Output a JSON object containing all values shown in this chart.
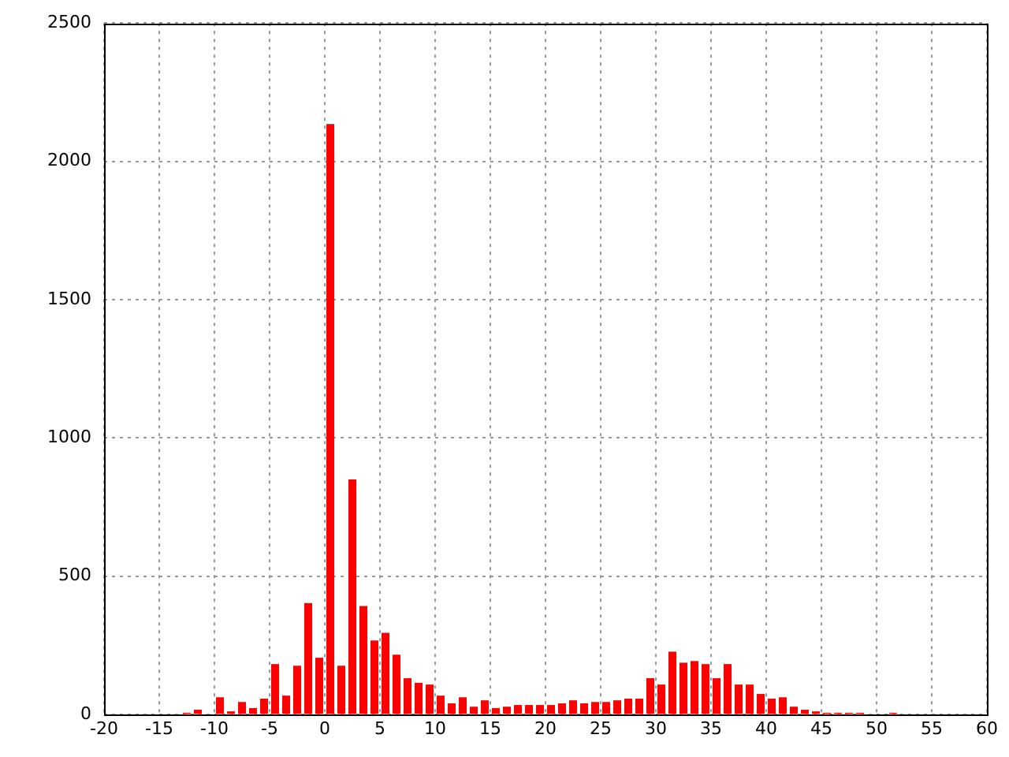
{
  "chart_data": {
    "type": "histogram",
    "bins": [
      -13,
      -12,
      -11,
      -10,
      -9,
      -8,
      -7,
      -6,
      -5,
      -4,
      -3,
      -2,
      -1,
      0,
      1,
      2,
      3,
      4,
      5,
      6,
      7,
      8,
      9,
      10,
      11,
      12,
      13,
      14,
      15,
      16,
      17,
      18,
      19,
      20,
      21,
      22,
      23,
      24,
      25,
      26,
      27,
      28,
      29,
      30,
      31,
      32,
      33,
      34,
      35,
      36,
      37,
      38,
      39,
      40,
      41,
      42,
      43,
      44,
      45,
      46,
      47,
      48,
      49,
      50,
      51,
      52
    ],
    "values": [
      6,
      17,
      0,
      62,
      11,
      45,
      23,
      57,
      182,
      68,
      176,
      403,
      205,
      2135,
      176,
      850,
      392,
      267,
      295,
      216,
      131,
      114,
      108,
      68,
      40,
      62,
      28,
      51,
      23,
      28,
      34,
      34,
      34,
      34,
      40,
      51,
      40,
      45,
      45,
      51,
      57,
      57,
      131,
      108,
      227,
      187,
      193,
      182,
      131,
      182,
      108,
      108,
      74,
      57,
      62,
      28,
      17,
      11,
      6,
      6,
      6,
      6,
      0,
      0,
      6
    ],
    "color": "#ff0000",
    "xlim": [
      -20,
      60
    ],
    "xticks": [
      -20,
      -15,
      -10,
      -5,
      0,
      5,
      10,
      15,
      20,
      25,
      30,
      35,
      40,
      45,
      50,
      55,
      60
    ],
    "ylim": [
      0,
      2500
    ],
    "yticks": [
      0,
      500,
      1000,
      1500,
      2000,
      2500
    ],
    "grid": true
  }
}
